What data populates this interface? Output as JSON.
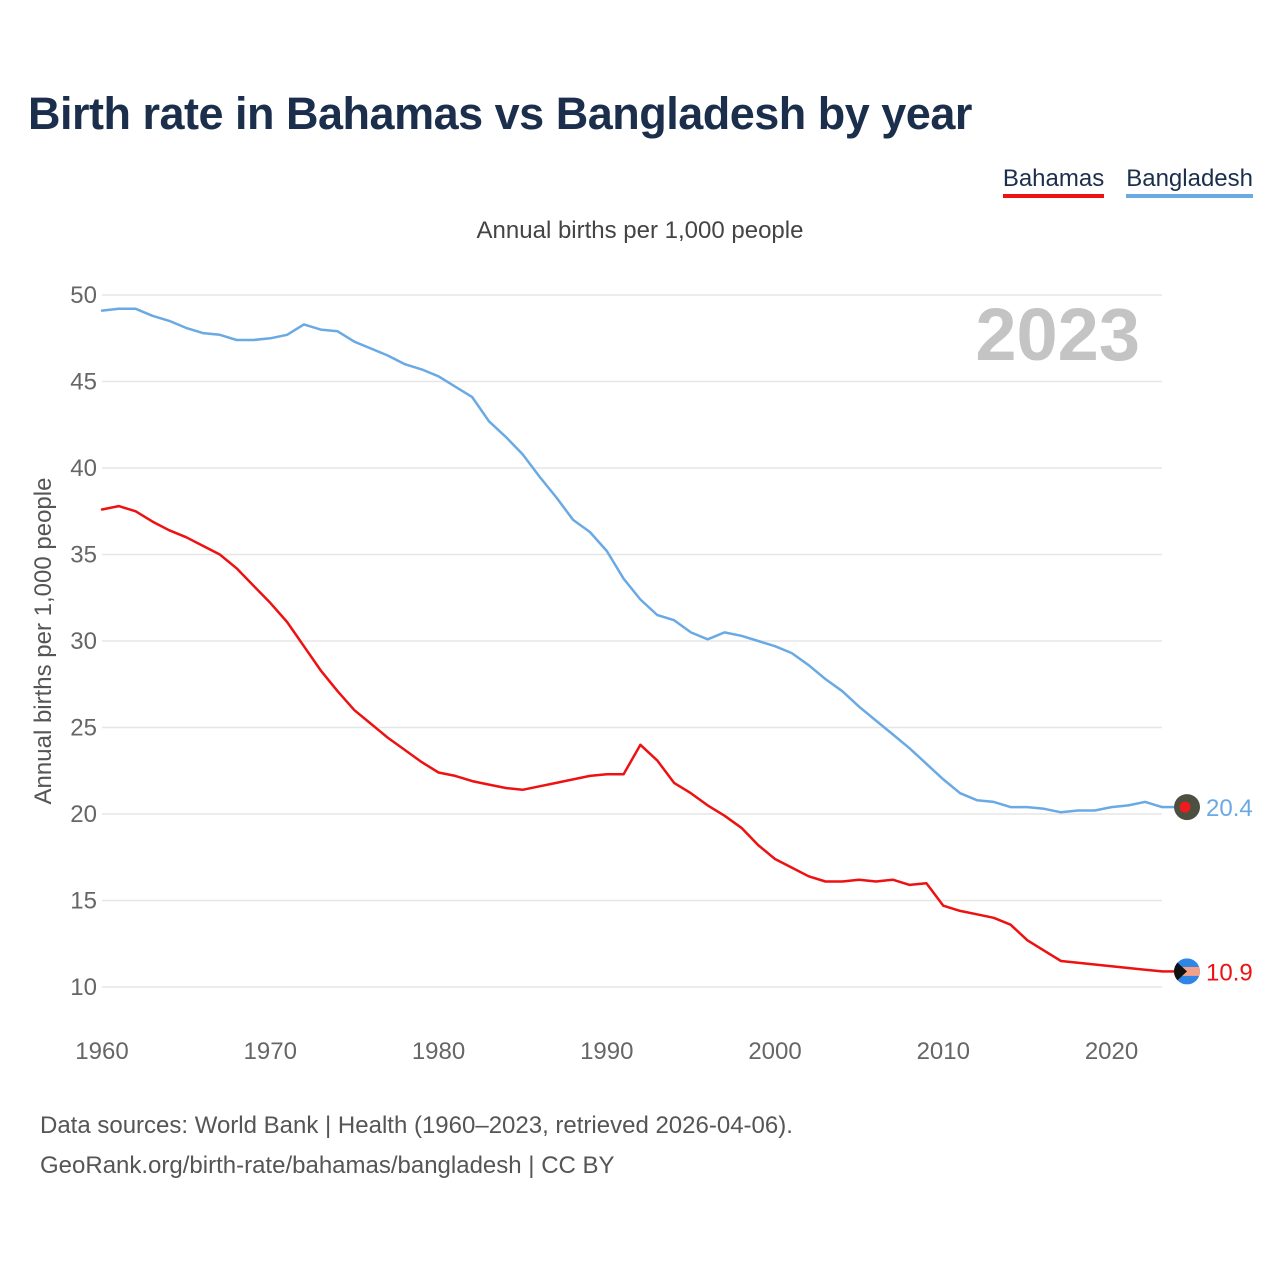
{
  "chart_data": {
    "type": "line",
    "title": "Birth rate in Bahamas vs Bangladesh by year",
    "subtitle": "Annual births per 1,000 people",
    "ylabel": "Annual births per 1,000 people",
    "xlabel": "",
    "year_watermark": "2023",
    "xlim": [
      1960,
      2023
    ],
    "ylim": [
      10,
      50
    ],
    "x_ticks": [
      "1960",
      "1970",
      "1980",
      "1990",
      "2000",
      "2010",
      "2020"
    ],
    "y_ticks": [
      "10",
      "15",
      "20",
      "25",
      "30",
      "35",
      "40",
      "45",
      "50"
    ],
    "legend_position": "top-right",
    "x": [
      1960,
      1961,
      1962,
      1963,
      1964,
      1965,
      1966,
      1967,
      1968,
      1969,
      1970,
      1971,
      1972,
      1973,
      1974,
      1975,
      1976,
      1977,
      1978,
      1979,
      1980,
      1981,
      1982,
      1983,
      1984,
      1985,
      1986,
      1987,
      1988,
      1989,
      1990,
      1991,
      1992,
      1993,
      1994,
      1995,
      1996,
      1997,
      1998,
      1999,
      2000,
      2001,
      2002,
      2003,
      2004,
      2005,
      2006,
      2007,
      2008,
      2009,
      2010,
      2011,
      2012,
      2013,
      2014,
      2015,
      2016,
      2017,
      2018,
      2019,
      2020,
      2021,
      2022,
      2023
    ],
    "series": [
      {
        "name": "Bahamas",
        "color": "#ee1111",
        "end_label": "10.9",
        "values": [
          37.6,
          37.8,
          37.5,
          36.9,
          36.4,
          36.0,
          35.5,
          35.0,
          34.2,
          33.2,
          32.2,
          31.1,
          29.7,
          28.3,
          27.1,
          26.0,
          25.2,
          24.4,
          23.7,
          23.0,
          22.4,
          22.2,
          21.9,
          21.7,
          21.5,
          21.4,
          21.6,
          21.8,
          22.0,
          22.2,
          22.3,
          22.3,
          24.0,
          23.1,
          21.8,
          21.2,
          20.5,
          19.9,
          19.2,
          18.2,
          17.4,
          16.9,
          16.4,
          16.1,
          16.1,
          16.2,
          16.1,
          16.2,
          15.9,
          16.0,
          14.7,
          14.4,
          14.2,
          14.0,
          13.6,
          12.7,
          12.1,
          11.5,
          11.4,
          11.3,
          11.2,
          11.1,
          11.0,
          10.9
        ]
      },
      {
        "name": "Bangladesh",
        "color": "#6aaae4",
        "end_label": "20.4",
        "values": [
          49.1,
          49.2,
          49.2,
          48.8,
          48.5,
          48.1,
          47.8,
          47.7,
          47.4,
          47.4,
          47.5,
          47.7,
          48.3,
          48.0,
          47.9,
          47.3,
          46.9,
          46.5,
          46.0,
          45.7,
          45.3,
          44.7,
          44.1,
          42.7,
          41.8,
          40.8,
          39.5,
          38.3,
          37.0,
          36.3,
          35.2,
          33.6,
          32.4,
          31.5,
          31.2,
          30.5,
          30.1,
          30.5,
          30.3,
          30.0,
          29.7,
          29.3,
          28.6,
          27.8,
          27.1,
          26.2,
          25.4,
          24.6,
          23.8,
          22.9,
          22.0,
          21.2,
          20.8,
          20.7,
          20.4,
          20.4,
          20.3,
          20.1,
          20.2,
          20.2,
          20.4,
          20.5,
          20.7,
          20.4
        ]
      }
    ]
  },
  "footer": {
    "line1": "Data sources: World Bank | Health (1960–2023, retrieved 2026-04-06).",
    "line2": "GeoRank.org/birth-rate/bahamas/bangladesh | CC BY"
  }
}
